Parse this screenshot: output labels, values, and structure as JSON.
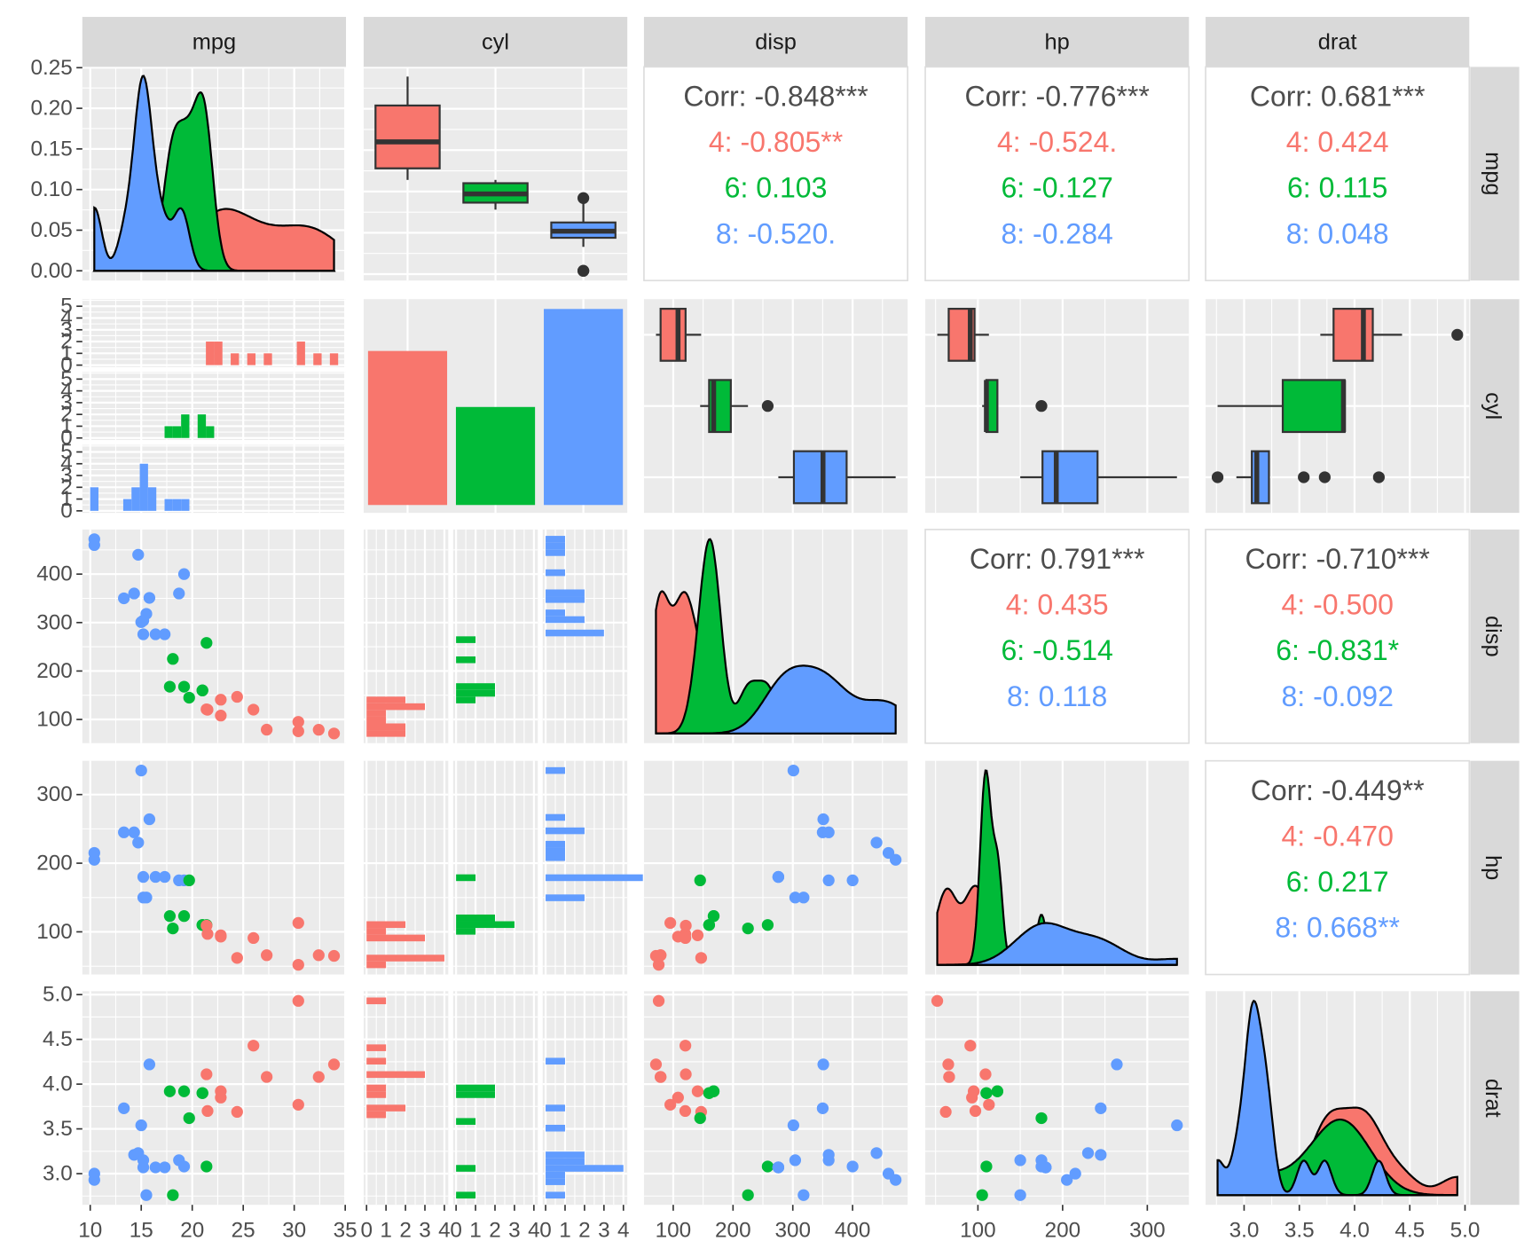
{
  "chart_data": {
    "type": "pairs",
    "vars": [
      {
        "name": "mpg",
        "values": [
          21.0,
          21.0,
          22.8,
          21.4,
          18.7,
          18.1,
          14.3,
          24.4,
          22.8,
          19.2,
          17.8,
          16.4,
          17.3,
          15.2,
          10.4,
          10.4,
          14.7,
          32.4,
          30.4,
          33.9,
          21.5,
          15.5,
          15.2,
          13.3,
          19.2,
          27.3,
          26.0,
          30.4,
          15.8,
          19.7,
          15.0,
          21.4
        ],
        "lim": [
          9.225,
          35.075
        ],
        "ticks": [
          10,
          15,
          20,
          25,
          30,
          35
        ]
      },
      {
        "name": "cyl",
        "values": [
          6,
          6,
          4,
          6,
          8,
          6,
          8,
          4,
          4,
          6,
          6,
          8,
          8,
          8,
          8,
          8,
          8,
          4,
          4,
          4,
          4,
          8,
          8,
          8,
          8,
          4,
          4,
          4,
          8,
          6,
          8,
          4
        ]
      },
      {
        "name": "disp",
        "values": [
          160,
          160,
          108,
          258,
          360,
          225,
          360,
          146.7,
          140.8,
          167.6,
          167.6,
          275.8,
          275.8,
          275.8,
          472,
          460,
          440,
          78.7,
          75.7,
          71.1,
          120.1,
          318,
          304,
          350,
          400,
          79,
          120.3,
          95.1,
          351,
          145,
          301,
          121
        ],
        "lim": [
          51.05,
          492.05
        ],
        "ticks": [
          100,
          200,
          300,
          400
        ]
      },
      {
        "name": "hp",
        "values": [
          110,
          110,
          93,
          110,
          175,
          105,
          245,
          62,
          95,
          123,
          123,
          180,
          180,
          180,
          205,
          215,
          230,
          66,
          52,
          65,
          97,
          150,
          150,
          245,
          175,
          66,
          91,
          113,
          264,
          175,
          335,
          109
        ],
        "lim": [
          37.85,
          349.15
        ],
        "ticks": [
          100,
          200,
          300
        ]
      },
      {
        "name": "drat",
        "values": [
          3.9,
          3.9,
          3.85,
          3.08,
          3.15,
          2.76,
          3.21,
          3.69,
          3.92,
          3.92,
          3.92,
          3.07,
          3.07,
          3.07,
          2.93,
          3.0,
          3.23,
          4.08,
          4.93,
          4.22,
          3.7,
          2.76,
          3.15,
          3.73,
          3.08,
          4.08,
          4.43,
          3.77,
          4.22,
          3.62,
          3.54,
          4.11
        ],
        "lim": [
          2.6515,
          5.0385
        ],
        "ticks": [
          {
            "value": 3,
            "label": "3.0"
          },
          {
            "value": 3.5,
            "label": "3.5"
          },
          {
            "value": 4,
            "label": "4.0"
          },
          {
            "value": 4.5,
            "label": "4.5"
          },
          {
            "value": 5,
            "label": "5.0"
          }
        ]
      }
    ],
    "cyl_levels": [
      4,
      6,
      8
    ],
    "group_colors": [
      "#F8766D",
      "#00BA38",
      "#619CFF"
    ],
    "density_lim": [
      -0.012,
      0.251
    ],
    "density_ticks": [
      {
        "value": 0,
        "label": "0.00"
      },
      {
        "value": 0.05,
        "label": "0.05"
      },
      {
        "value": 0.1,
        "label": "0.10"
      },
      {
        "value": 0.15,
        "label": "0.15"
      },
      {
        "value": 0.2,
        "label": "0.20"
      },
      {
        "value": 0.25,
        "label": "0.25"
      }
    ],
    "count_lim_row": [
      -0.17,
      5.6
    ],
    "count_ticks_row": [
      0,
      1,
      2,
      3,
      4,
      5
    ],
    "count_lim_col": [
      -0.15,
      4.2
    ],
    "count_ticks_col": [
      0,
      1,
      2,
      3,
      4
    ],
    "correlations": [
      {
        "lines": [
          "Corr: -0.848***",
          "4: -0.805**",
          "6: 0.103",
          "8: -0.520."
        ]
      },
      {
        "lines": [
          "Corr: -0.776***",
          "4: -0.524.",
          "6: -0.127",
          "8: -0.284"
        ]
      },
      {
        "lines": [
          "Corr: 0.681***",
          "4: 0.424",
          "6: 0.115",
          "8: 0.048"
        ]
      },
      {
        "lines": [
          "Corr: 0.791***",
          "4: 0.435",
          "6: -0.514",
          "8: 0.118"
        ]
      },
      {
        "lines": [
          "Corr: -0.710***",
          "4: -0.500",
          "6: -0.831*",
          "8: -0.092"
        ]
      },
      {
        "lines": [
          "Corr: -0.449**",
          "4: -0.470",
          "6: 0.217",
          "8: 0.668**"
        ]
      }
    ]
  }
}
